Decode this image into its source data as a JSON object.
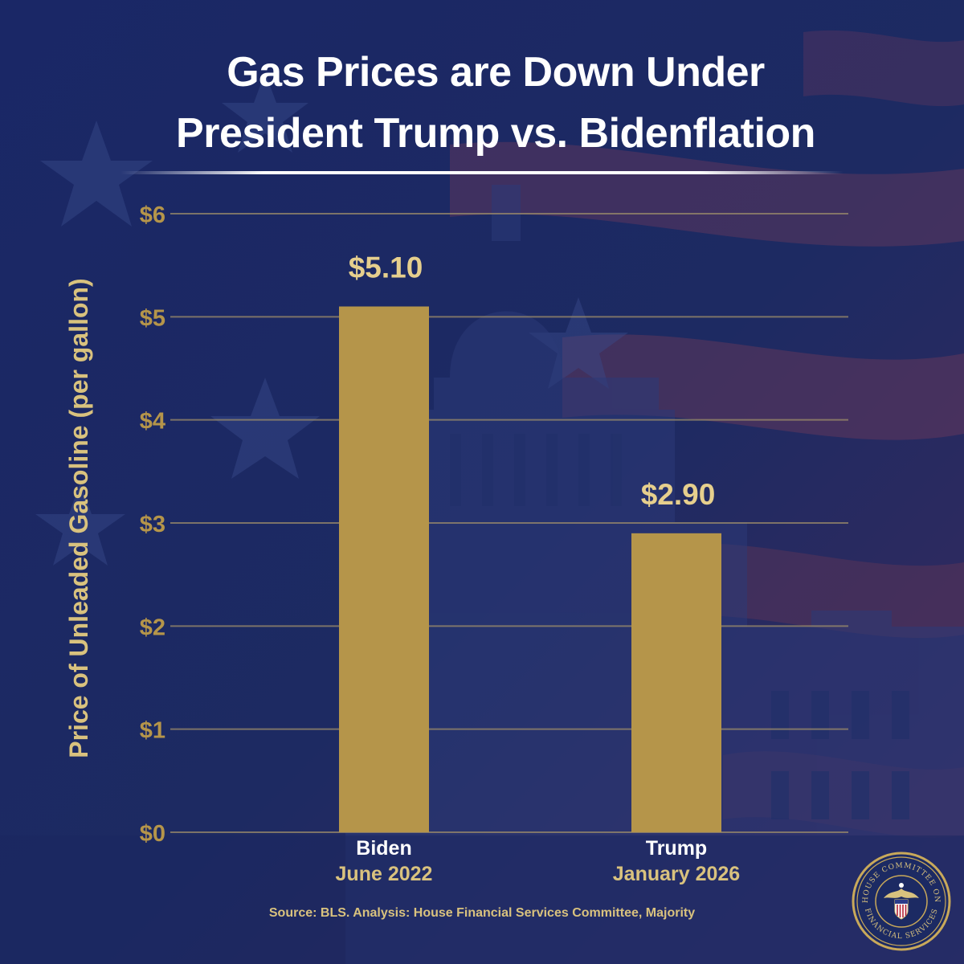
{
  "title_line1": "Gas Prices are Down Under",
  "title_line2": "President Trump vs. Bidenflation",
  "chart_data": {
    "type": "bar",
    "categories": [
      "Biden June 2022",
      "Trump January 2026"
    ],
    "category_names": [
      "Biden",
      "Trump"
    ],
    "category_dates": [
      "June 2022",
      "January 2026"
    ],
    "values": [
      5.1,
      2.9
    ],
    "data_labels": [
      "$5.10",
      "$2.90"
    ],
    "ylabel": "Price of Unleaded Gasoline (per gallon)",
    "xlabel": "",
    "ylim": [
      0,
      6
    ],
    "yticks": [
      0,
      1,
      2,
      3,
      4,
      5,
      6
    ],
    "ytick_labels": [
      "$0",
      "$1",
      "$2",
      "$3",
      "$4",
      "$5",
      "$6"
    ],
    "grid": true,
    "bar_color": "#b5954a",
    "label_color": "#e6cf8d"
  },
  "source": "Source: BLS. Analysis: House Financial Services Committee, Majority",
  "seal": {
    "ring_text": "HOUSE COMMITTEE ON FINANCIAL SERVICES",
    "top_text": "HOUSE COMMITTEE ON",
    "bottom_text": "FINANCIAL SERVICES"
  }
}
